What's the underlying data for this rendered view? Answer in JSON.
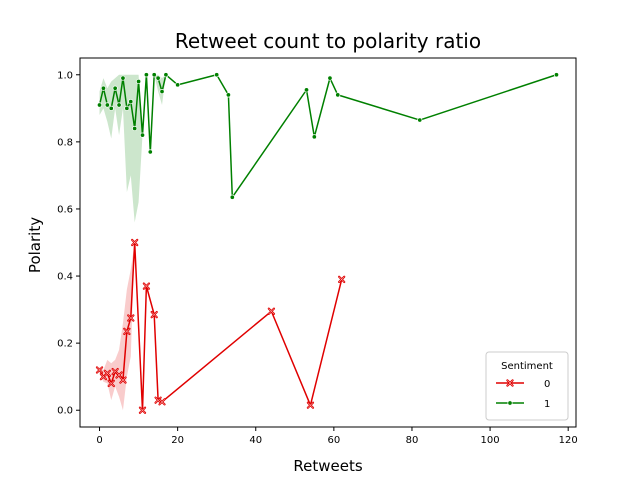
{
  "chart_data": {
    "type": "line",
    "title": "Retweet count to polarity ratio",
    "xlabel": "Retweets",
    "ylabel": "Polarity",
    "xlim": [
      -5,
      122
    ],
    "ylim": [
      -0.05,
      1.05
    ],
    "xticks": [
      0,
      20,
      40,
      60,
      80,
      100,
      120
    ],
    "yticks": [
      0.0,
      0.2,
      0.4,
      0.6,
      0.8,
      1.0
    ],
    "xtick_labels": [
      "0",
      "20",
      "40",
      "60",
      "80",
      "100",
      "120"
    ],
    "ytick_labels": [
      "0.0",
      "0.2",
      "0.4",
      "0.6",
      "0.8",
      "1.0"
    ],
    "grid": false,
    "legend": {
      "title": "Sentiment",
      "placement": "lower-right"
    },
    "series": [
      {
        "name": "0",
        "color": "#e00000",
        "marker": "x",
        "x": [
          0,
          1,
          2,
          3,
          4,
          5,
          6,
          7,
          8,
          9,
          11,
          12,
          14,
          15,
          16,
          44,
          54,
          62
        ],
        "y": [
          0.12,
          0.1,
          0.11,
          0.08,
          0.115,
          0.105,
          0.09,
          0.235,
          0.275,
          0.5,
          0.0,
          0.37,
          0.285,
          0.03,
          0.025,
          0.295,
          0.015,
          0.39
        ],
        "ci_upper": [
          0.13,
          0.12,
          0.15,
          0.14,
          0.15,
          0.18,
          0.26,
          0.36,
          0.42,
          0.5,
          0.0,
          0.37,
          0.285,
          0.03,
          0.025,
          0.295,
          0.015,
          0.39
        ],
        "ci_lower": [
          0.11,
          0.085,
          0.08,
          0.03,
          0.07,
          0.04,
          0.0,
          0.1,
          0.16,
          0.5,
          0.0,
          0.37,
          0.285,
          0.03,
          0.025,
          0.295,
          0.015,
          0.39
        ]
      },
      {
        "name": "1",
        "color": "#008000",
        "marker": "o",
        "x": [
          0,
          1,
          2,
          3,
          4,
          5,
          6,
          7,
          8,
          9,
          10,
          11,
          12,
          13,
          14,
          15,
          16,
          17,
          20,
          30,
          33,
          34,
          53,
          55,
          59,
          61,
          82,
          117
        ],
        "y": [
          0.91,
          0.96,
          0.91,
          0.9,
          0.96,
          0.91,
          0.99,
          0.9,
          0.92,
          0.84,
          0.98,
          0.82,
          1.0,
          0.77,
          1.0,
          0.99,
          0.95,
          1.0,
          0.97,
          1.0,
          0.94,
          0.635,
          0.955,
          0.815,
          0.99,
          0.94,
          0.865,
          1.0
        ],
        "ci_upper": [
          0.95,
          0.99,
          0.96,
          0.98,
          0.99,
          1.0,
          1.0,
          1.0,
          1.0,
          1.0,
          1.0,
          0.82,
          1.0,
          0.77,
          1.0,
          1.0,
          0.99,
          1.0,
          0.97,
          1.0,
          0.94,
          0.635,
          0.955,
          0.815,
          0.99,
          0.94,
          0.865,
          1.0
        ],
        "ci_lower": [
          0.88,
          0.9,
          0.86,
          0.81,
          0.9,
          0.82,
          0.9,
          0.65,
          0.7,
          0.56,
          0.62,
          0.82,
          1.0,
          0.77,
          1.0,
          0.95,
          0.91,
          1.0,
          0.97,
          1.0,
          0.94,
          0.635,
          0.955,
          0.815,
          0.99,
          0.94,
          0.865,
          1.0
        ]
      }
    ]
  }
}
